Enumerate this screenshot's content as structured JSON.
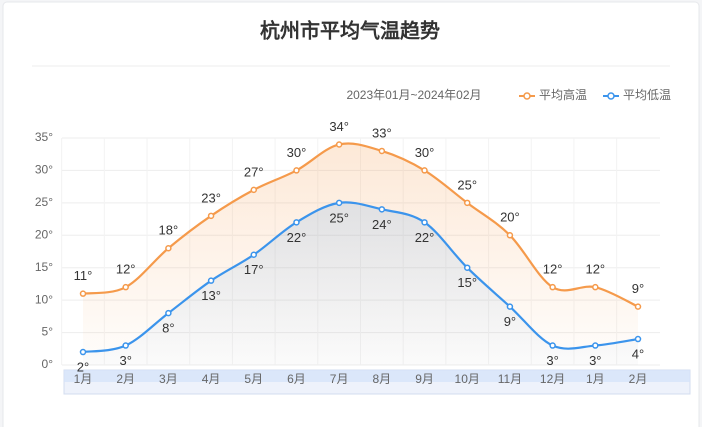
{
  "chart_data": {
    "type": "line",
    "title": "杭州市平均气温趋势",
    "subtitle": "2023年01月~2024年02月",
    "categories": [
      "1月",
      "2月",
      "3月",
      "4月",
      "5月",
      "6月",
      "7月",
      "8月",
      "9月",
      "10月",
      "11月",
      "12月",
      "1月",
      "2月"
    ],
    "series": [
      {
        "name": "平均高温",
        "color": "#f59a4b",
        "values": [
          11,
          12,
          18,
          23,
          27,
          30,
          34,
          33,
          30,
          25,
          20,
          12,
          12,
          9
        ],
        "value_labels": [
          "11°",
          "12°",
          "18°",
          "23°",
          "27°",
          "30°",
          "34°",
          "33°",
          "30°",
          "25°",
          "20°",
          "12°",
          "12°",
          "9°"
        ]
      },
      {
        "name": "平均低温",
        "color": "#3b94ec",
        "values": [
          2,
          3,
          8,
          13,
          17,
          22,
          25,
          24,
          22,
          15,
          9,
          3,
          3,
          4
        ],
        "value_labels": [
          "2°",
          "3°",
          "8°",
          "13°",
          "17°",
          "22°",
          "25°",
          "24°",
          "22°",
          "15°",
          "9°",
          "3°",
          "3°",
          "4°"
        ]
      }
    ],
    "ylim": [
      0,
      35
    ],
    "yticks": [
      {
        "value": 0,
        "label": "0°"
      },
      {
        "value": 5,
        "label": "5°"
      },
      {
        "value": 10,
        "label": "10°"
      },
      {
        "value": 15,
        "label": "15°"
      },
      {
        "value": 20,
        "label": "20°"
      },
      {
        "value": 25,
        "label": "25°"
      },
      {
        "value": 30,
        "label": "30°"
      },
      {
        "value": 35,
        "label": "35°"
      }
    ],
    "grid": true,
    "legend": "top-right",
    "smooth": true
  }
}
